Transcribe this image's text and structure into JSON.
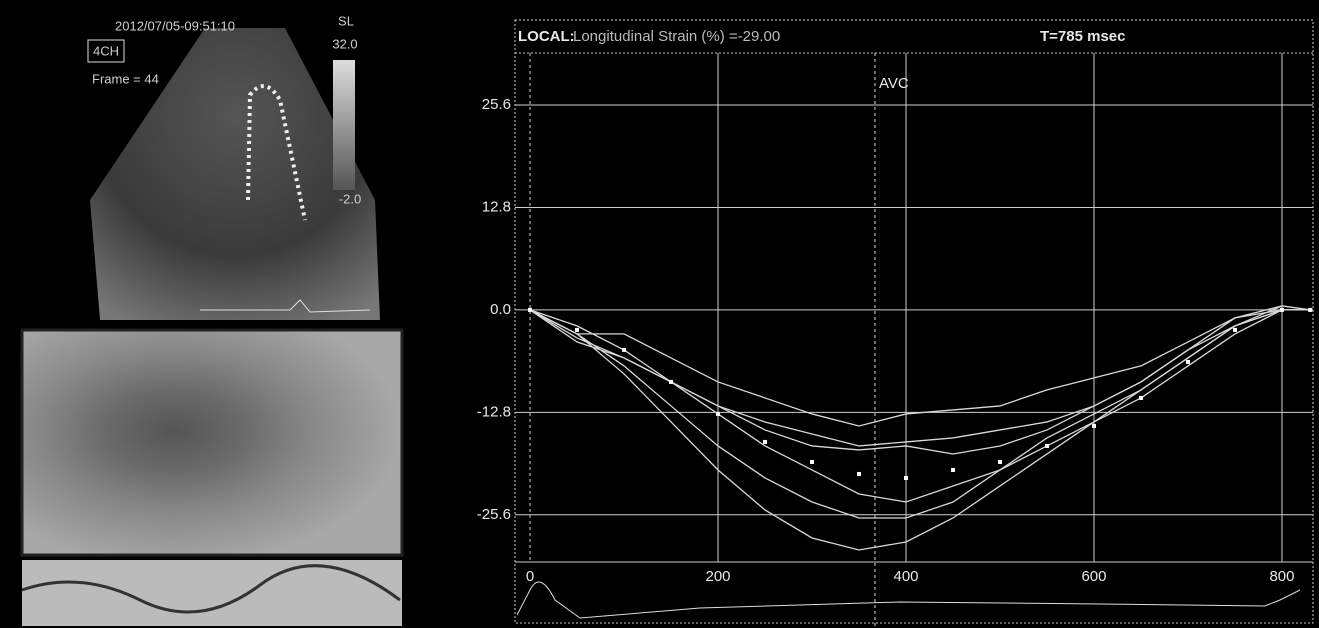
{
  "echo_panel": {
    "timestamp": "2012/07/05-09:51:10",
    "view": "4CH",
    "frame": "Frame = 44",
    "scale_name": "SL",
    "scale_max": "32.0",
    "scale_min": "-2.0"
  },
  "chart_data": {
    "type": "line",
    "header_label": "LOCAL:",
    "header_measure": "Longitudinal Strain (%) =-29.00",
    "header_time": "T=785 msec",
    "annotation": "AVC",
    "annotation_x": 367,
    "x": [
      0,
      50,
      100,
      150,
      200,
      250,
      300,
      350,
      400,
      450,
      500,
      550,
      600,
      650,
      700,
      750,
      800,
      830
    ],
    "xlim": [
      -16,
      833
    ],
    "ylim": [
      -31.5,
      32.1
    ],
    "xticks": [
      0,
      200,
      400,
      600,
      800
    ],
    "yticks": [
      -25.6,
      -12.8,
      {
        "value": 0,
        "label": "0.0"
      },
      12.8,
      25.6
    ],
    "grid": true,
    "series": [
      {
        "color": "#d8d8d8",
        "values": [
          0,
          -3,
          -8,
          -14,
          -20,
          -25,
          -28.5,
          -30,
          -29,
          -26,
          -22,
          -18,
          -14,
          -10,
          -6,
          -2,
          0.5,
          0
        ]
      },
      {
        "color": "#d8d8d8",
        "values": [
          0,
          -3,
          -7,
          -12,
          -17,
          -21,
          -24,
          -26,
          -26,
          -24,
          -20,
          -16,
          -13,
          -10,
          -6,
          -2,
          0,
          0
        ]
      },
      {
        "color": "#d8d8d8",
        "values": [
          0,
          -4,
          -6,
          -9,
          -12,
          -15,
          -17,
          -17.5,
          -17,
          -18,
          -17,
          -15,
          -12,
          -9,
          -5,
          -1,
          0.5,
          0
        ]
      },
      {
        "color": "#d8d8d8",
        "values": [
          0,
          -3,
          -3,
          -6,
          -9,
          -11,
          -13,
          -14.5,
          -13,
          -12.5,
          -12,
          -10,
          -8.5,
          -7,
          -4,
          -1,
          0,
          0
        ]
      },
      {
        "color": "#d8d8d8",
        "values": [
          0,
          -3.5,
          -6,
          -9,
          -12,
          -14,
          -15.5,
          -17,
          -16.5,
          -16,
          -15,
          -14,
          -12,
          -9,
          -5,
          -2,
          0,
          0
        ]
      },
      {
        "color": "#d8d8d8",
        "values": [
          0,
          -2,
          -5,
          -9,
          -13,
          -17,
          -20,
          -23,
          -24,
          -22,
          -20,
          -17,
          -14,
          -11,
          -7,
          -3,
          0,
          0
        ]
      },
      {
        "color": "#ffffff",
        "marker": "square",
        "values": [
          0,
          -2.5,
          -5,
          -9,
          -13,
          -16.5,
          -19,
          -20.5,
          -21,
          -20,
          -19,
          -17,
          -14.5,
          -11,
          -6.5,
          -2.5,
          0,
          0
        ]
      }
    ]
  }
}
